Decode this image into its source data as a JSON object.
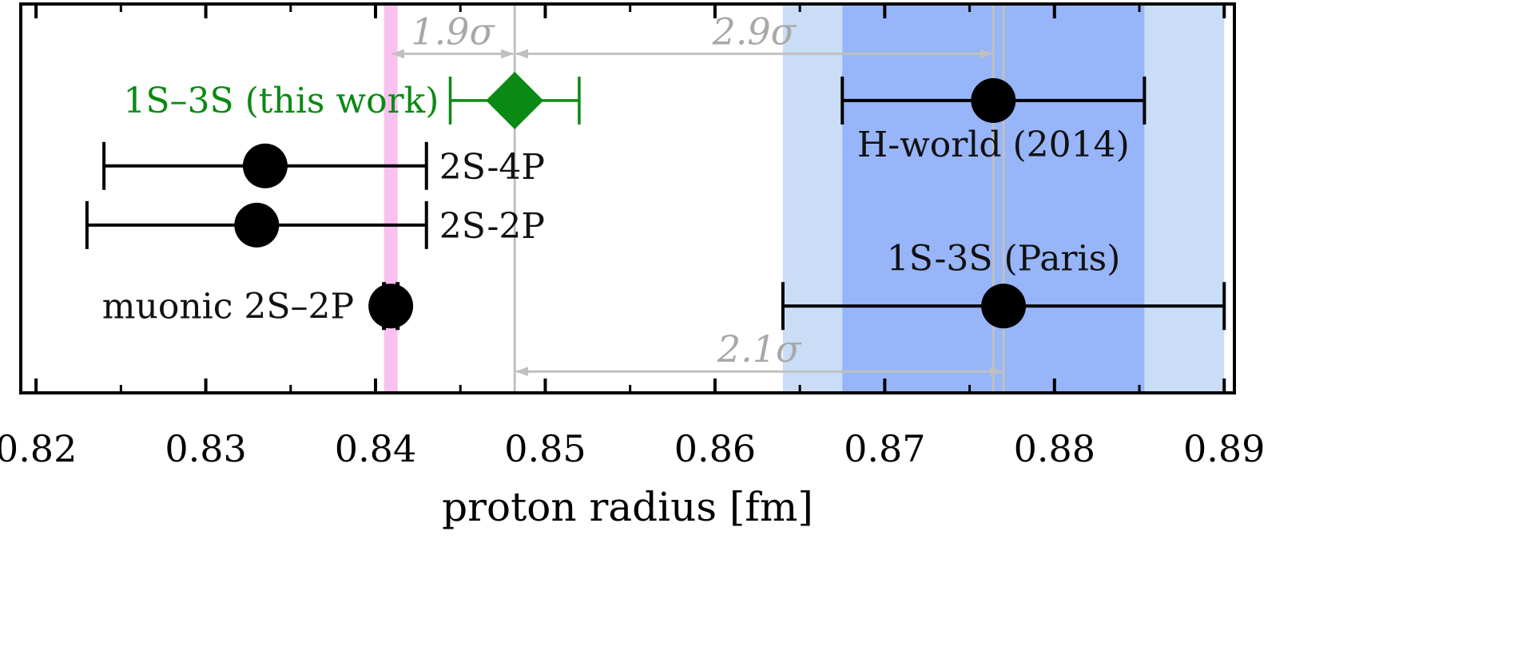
{
  "chart_data": {
    "type": "scatter",
    "orientation": "horizontal-errorbars",
    "xlabel": "proton radius [fm]",
    "xlim": [
      0.82,
      0.89
    ],
    "xticks": [
      "0.82",
      "0.83",
      "0.84",
      "0.85",
      "0.86",
      "0.87",
      "0.88",
      "0.89"
    ],
    "xtick_values": [
      0.82,
      0.83,
      0.84,
      0.85,
      0.86,
      0.87,
      0.88,
      0.89
    ],
    "grid": false,
    "bands": [
      {
        "id": "muonic",
        "center": 0.8409,
        "halfwidth": 0.0004,
        "color": "#f9c0f0"
      },
      {
        "id": "hworld-outer",
        "from": 0.864,
        "to": 0.89,
        "color": "#c9ddf6"
      },
      {
        "id": "hworld-inner",
        "from": 0.8675,
        "to": 0.8853,
        "color": "#97b5f8"
      }
    ],
    "reference_lines": [
      {
        "x": 0.8482,
        "color": "#c0c0c0"
      },
      {
        "x": 0.8764,
        "color": "#c0c0c0"
      },
      {
        "x": 0.877,
        "color": "#c0c0c0"
      }
    ],
    "points": [
      {
        "label": "1S–3S (this work)",
        "value": 0.8482,
        "err_low": 0.0038,
        "err_high": 0.0038,
        "marker": "diamond",
        "color": "#0a8a14",
        "label_side": "left",
        "row": 1.55
      },
      {
        "label": "H-world (2014)",
        "value": 0.8764,
        "err_low": 0.0089,
        "err_high": 0.0089,
        "marker": "circle",
        "color": "#000000",
        "label_side": "below",
        "row": 1.55
      },
      {
        "label": "2S-4P",
        "value": 0.8335,
        "err_low": 0.0095,
        "err_high": 0.0095,
        "marker": "circle",
        "color": "#000000",
        "label_side": "right",
        "row": 2.6
      },
      {
        "label": "2S-2P",
        "value": 0.833,
        "err_low": 0.01,
        "err_high": 0.01,
        "marker": "circle",
        "color": "#000000",
        "label_side": "right",
        "row": 3.55
      },
      {
        "label": "1S-3S (Paris)",
        "value": 0.877,
        "err_low": 0.013,
        "err_high": 0.013,
        "marker": "circle",
        "color": "#000000",
        "label_side": "above",
        "row": 4.85
      },
      {
        "label": "muonic 2S–2P",
        "value": 0.8409,
        "err_low": 0.0004,
        "err_high": 0.0004,
        "marker": "circle",
        "color": "#000000",
        "label_side": "left",
        "row": 4.85
      }
    ],
    "annotations": [
      {
        "text": "1.9σ",
        "from": 0.8409,
        "to": 0.8482,
        "row": 0.8
      },
      {
        "text": "2.9σ",
        "from": 0.8482,
        "to": 0.8764,
        "row": 0.8
      },
      {
        "text": "2.1σ",
        "from": 0.8482,
        "to": 0.877,
        "row": 5.9
      }
    ]
  }
}
